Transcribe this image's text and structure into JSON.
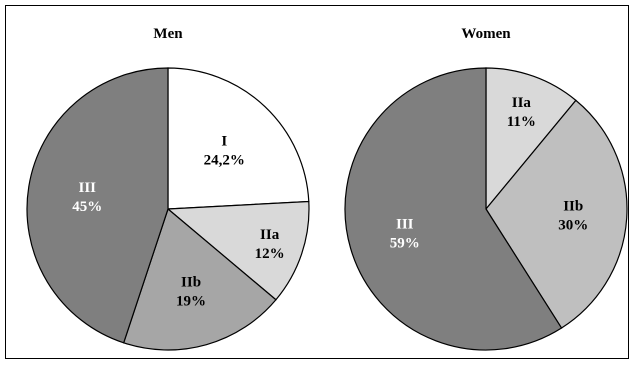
{
  "chart_data": [
    {
      "type": "pie",
      "title": "Men",
      "slices": [
        {
          "label": "I",
          "value_label": "24,2%",
          "value": 24.2,
          "color": "#ffffff",
          "text_color": "#000000"
        },
        {
          "label": "IIa",
          "value_label": "12%",
          "value": 12,
          "color": "#d9d9d9",
          "text_color": "#000000"
        },
        {
          "label": "IIb",
          "value_label": "19%",
          "value": 19,
          "color": "#a6a6a6",
          "text_color": "#000000"
        },
        {
          "label": "III",
          "value_label": "45%",
          "value": 45,
          "color": "#7f7f7f",
          "text_color": "#ffffff"
        }
      ]
    },
    {
      "type": "pie",
      "title": "Women",
      "slices": [
        {
          "label": "IIa",
          "value_label": "11%",
          "value": 11,
          "color": "#d9d9d9",
          "text_color": "#000000"
        },
        {
          "label": "IIb",
          "value_label": "30%",
          "value": 30,
          "color": "#bfbfbf",
          "text_color": "#000000"
        },
        {
          "label": "III",
          "value_label": "59%",
          "value": 59,
          "color": "#7f7f7f",
          "text_color": "#ffffff"
        }
      ]
    }
  ]
}
